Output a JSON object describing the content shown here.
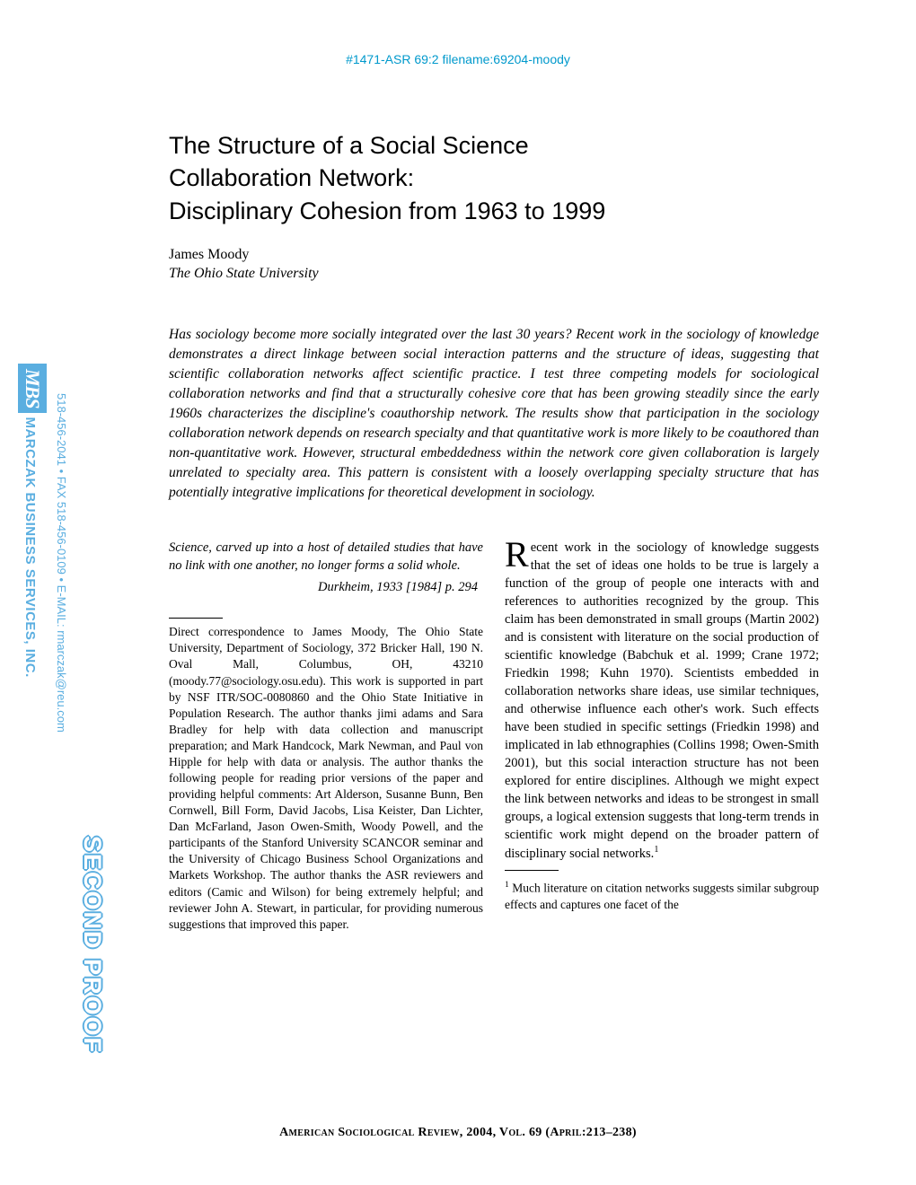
{
  "header_id": "#1471-ASR 69:2 filename:69204-moody",
  "title_line1": "The Structure of a Social Science",
  "title_line2": "Collaboration Network:",
  "title_line3": "Disciplinary Cohesion from 1963 to 1999",
  "author": "James Moody",
  "affiliation": "The Ohio State University",
  "abstract": "Has sociology become more socially integrated over the last 30 years? Recent work in the sociology of knowledge demonstrates a direct linkage between social interaction patterns and the structure of ideas, suggesting that scientific collaboration networks affect scientific practice. I test three competing models for sociological collaboration networks and find that a structurally cohesive core that has been growing steadily since the early 1960s characterizes the discipline's coauthorship network. The results show that participation in the sociology collaboration network depends on research specialty and that quantitative work is more likely to be coauthored than non-quantitative work. However, structural embeddedness within the network core given collaboration is largely unrelated to specialty area. This pattern is consistent with a loosely overlapping specialty structure that has potentially integrative implications for theoretical development in sociology.",
  "epigraph": "Science, carved up into a host of detailed studies that have no link with one another, no longer forms a solid whole.",
  "epigraph_cite": "Durkheim, 1933 [1984] p. 294",
  "footnote_left": "Direct correspondence to James Moody, The Ohio State University, Department of Sociology, 372 Bricker Hall, 190 N. Oval Mall, Columbus, OH, 43210 (moody.77@sociology.osu.edu). This work is supported in part by NSF ITR/SOC-0080860 and the Ohio State Initiative in Population Research. The author thanks jimi adams and Sara Bradley for help with data collection and manuscript preparation; and Mark Handcock, Mark Newman, and Paul von Hipple for help with data or analysis. The author thanks the following people for reading prior versions of the paper and providing helpful comments: Art Alderson, Susanne Bunn, Ben Cornwell, Bill Form, David Jacobs, Lisa Keister, Dan Lichter, Dan McFarland, Jason Owen-Smith, Woody Powell, and the participants of the Stanford University SCANCOR seminar and the University of Chicago Business School Organizations and Markets Workshop. The author thanks the ASR reviewers and editors (Camic and Wilson) for being extremely helpful; and reviewer John A. Stewart, in particular, for providing numerous suggestions that improved this paper.",
  "body_right": "ecent work in the sociology of knowledge suggests that the set of ideas one holds to be true is largely a function of the group of people one interacts with and references to authorities recognized by the group. This claim has been demonstrated in small groups (Martin 2002) and is consistent with literature on the social production of scientific knowledge (Babchuk et al. 1999; Crane 1972; Friedkin 1998; Kuhn 1970). Scientists embedded in collaboration networks share ideas, use similar techniques, and otherwise influence each other's work. Such effects have been studied in specific settings (Friedkin 1998) and implicated in lab ethnographies (Collins 1998; Owen-Smith 2001), but this social interaction structure has not been explored for entire disciplines. Although we might expect the link between networks and ideas to be strongest in small groups, a logical extension suggests that long-term trends in scientific work might depend on the broader pattern of disciplinary social networks.",
  "footnote_right_marker": "1",
  "footnote_right": " Much literature on citation networks suggests similar subgroup effects and captures one facet of the",
  "footer": "American Sociological Review, 2004, Vol. 69 (April:213–238)",
  "stamp": {
    "mbs_logo": "MBS",
    "mbs_name": "MARCZAK BUSINESS SERVICES, INC.",
    "mbs_contact": "518-456-2041 • FAX 518-456-0109 • E-MAIL: rmarczak@reu.com",
    "proof": "SECOND PROOF"
  },
  "colors": {
    "header_blue": "#0099cc",
    "stamp_blue": "#5aaee0",
    "text": "#000000",
    "background": "#ffffff"
  }
}
